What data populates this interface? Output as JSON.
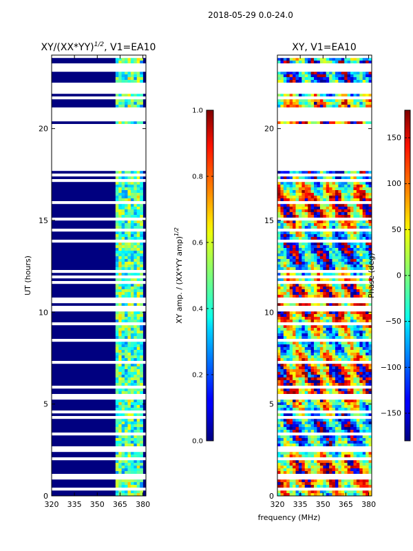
{
  "suptitle": "2018-05-29 0.0-24.0",
  "shared_xlabel": "frequency (MHz)",
  "chart_data": [
    {
      "type": "heatmap",
      "title_main": "XY/(XX*YY)",
      "title_sup": "1/2",
      "title_tail": ", V1=EA10",
      "ylabel": "UT (hours)",
      "xlim": [
        320,
        382
      ],
      "ylim": [
        0,
        24
      ],
      "x_ticks": [
        320,
        335,
        350,
        365,
        380
      ],
      "y_ticks": [
        0,
        5,
        10,
        15,
        20
      ],
      "colorbar": {
        "label_main": "XY amp. / (XX*YY amp)",
        "label_sup": "1/2",
        "range": [
          0.0,
          1.0
        ],
        "ticks": [
          0.0,
          0.2,
          0.4,
          0.6,
          0.8,
          1.0
        ],
        "tick_labels": [
          "0.0",
          "0.2",
          "0.4",
          "0.6",
          "0.8",
          "1.0"
        ]
      },
      "blank_ut_ranges": [
        [
          17.8,
          20.3
        ],
        [
          20.5,
          21.2
        ],
        [
          21.9,
          22.5
        ]
      ],
      "bright_band_mhz": [
        362,
        380
      ],
      "background_value": 0.0,
      "band_value_range": [
        0.25,
        0.6
      ]
    },
    {
      "type": "heatmap",
      "title": "XY, V1=EA10",
      "ylabel": "",
      "xlim": [
        320,
        382
      ],
      "ylim": [
        0,
        24
      ],
      "x_ticks": [
        320,
        335,
        350,
        365,
        380
      ],
      "y_ticks": [
        0,
        5,
        10,
        15,
        20
      ],
      "colorbar": {
        "label": "Phase (deg)",
        "range": [
          -180,
          180
        ],
        "ticks": [
          -150,
          -100,
          -50,
          0,
          50,
          100,
          150
        ],
        "tick_labels": [
          "−150",
          "−100",
          "−50",
          "0",
          "50",
          "100",
          "150"
        ]
      },
      "blank_ut_ranges": [
        [
          17.8,
          20.3
        ],
        [
          20.5,
          21.2
        ],
        [
          21.9,
          22.5
        ]
      ]
    }
  ],
  "colors": {
    "background": "#ffffff",
    "axis": "#000000",
    "blank": "#ffffff"
  }
}
